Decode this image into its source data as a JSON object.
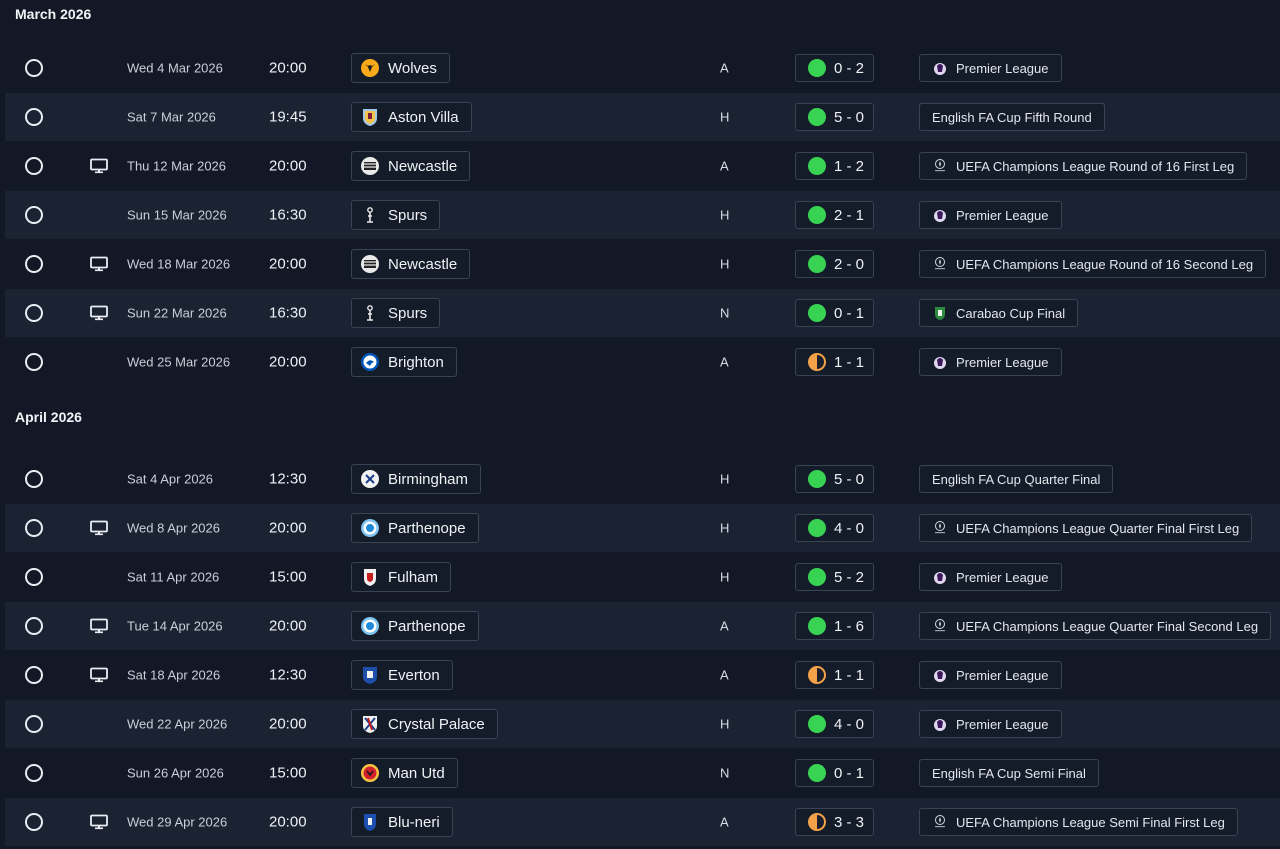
{
  "colors": {
    "background": "#121826",
    "row_alt": "#1b2232",
    "win": "#39d353",
    "draw": "#f4a24a",
    "border": "#3a4356"
  },
  "months": [
    {
      "title": "March 2026",
      "matches": [
        {
          "date": "Wed 4 Mar 2026",
          "time": "20:00",
          "opponent": "Wolves",
          "crest": "wolves-crest-icon",
          "venue": "A",
          "result": "0 - 2",
          "outcome": "win",
          "competition": "Premier League",
          "comp_icon": "premier-league-icon",
          "tv": false
        },
        {
          "date": "Sat 7 Mar 2026",
          "time": "19:45",
          "opponent": "Aston Villa",
          "crest": "aston-villa-crest-icon",
          "venue": "H",
          "result": "5 - 0",
          "outcome": "win",
          "competition": "English FA Cup Fifth Round",
          "comp_icon": "",
          "tv": false
        },
        {
          "date": "Thu 12 Mar 2026",
          "time": "20:00",
          "opponent": "Newcastle",
          "crest": "newcastle-crest-icon",
          "venue": "A",
          "result": "1 - 2",
          "outcome": "win",
          "competition": "UEFA Champions League Round of 16  First Leg",
          "comp_icon": "champions-league-icon",
          "tv": true
        },
        {
          "date": "Sun 15 Mar 2026",
          "time": "16:30",
          "opponent": "Spurs",
          "crest": "spurs-crest-icon",
          "venue": "H",
          "result": "2 - 1",
          "outcome": "win",
          "competition": "Premier League",
          "comp_icon": "premier-league-icon",
          "tv": false
        },
        {
          "date": "Wed 18 Mar 2026",
          "time": "20:00",
          "opponent": "Newcastle",
          "crest": "newcastle-crest-icon",
          "venue": "H",
          "result": "2 - 0",
          "outcome": "win",
          "competition": "UEFA Champions League Round of 16  Second Leg",
          "comp_icon": "champions-league-icon",
          "tv": true
        },
        {
          "date": "Sun 22 Mar 2026",
          "time": "16:30",
          "opponent": "Spurs",
          "crest": "spurs-crest-icon",
          "venue": "N",
          "result": "0 - 1",
          "outcome": "win",
          "competition": "Carabao Cup Final",
          "comp_icon": "carabao-cup-icon",
          "tv": true
        },
        {
          "date": "Wed 25 Mar 2026",
          "time": "20:00",
          "opponent": "Brighton",
          "crest": "brighton-crest-icon",
          "venue": "A",
          "result": "1 - 1",
          "outcome": "draw",
          "competition": "Premier League",
          "comp_icon": "premier-league-icon",
          "tv": false
        }
      ]
    },
    {
      "title": "April 2026",
      "matches": [
        {
          "date": "Sat 4 Apr 2026",
          "time": "12:30",
          "opponent": "Birmingham",
          "crest": "birmingham-crest-icon",
          "venue": "H",
          "result": "5 - 0",
          "outcome": "win",
          "competition": "English FA Cup Quarter Final",
          "comp_icon": "",
          "tv": false
        },
        {
          "date": "Wed 8 Apr 2026",
          "time": "20:00",
          "opponent": "Parthenope",
          "crest": "parthenope-crest-icon",
          "venue": "H",
          "result": "4 - 0",
          "outcome": "win",
          "competition": "UEFA Champions League Quarter Final First Leg",
          "comp_icon": "champions-league-icon",
          "tv": true
        },
        {
          "date": "Sat 11 Apr 2026",
          "time": "15:00",
          "opponent": "Fulham",
          "crest": "fulham-crest-icon",
          "venue": "H",
          "result": "5 - 2",
          "outcome": "win",
          "competition": "Premier League",
          "comp_icon": "premier-league-icon",
          "tv": false
        },
        {
          "date": "Tue 14 Apr 2026",
          "time": "20:00",
          "opponent": "Parthenope",
          "crest": "parthenope-crest-icon",
          "venue": "A",
          "result": "1 - 6",
          "outcome": "win",
          "competition": "UEFA Champions League Quarter Final Second Leg",
          "comp_icon": "champions-league-icon",
          "tv": true
        },
        {
          "date": "Sat 18 Apr 2026",
          "time": "12:30",
          "opponent": "Everton",
          "crest": "everton-crest-icon",
          "venue": "A",
          "result": "1 - 1",
          "outcome": "draw",
          "competition": "Premier League",
          "comp_icon": "premier-league-icon",
          "tv": true
        },
        {
          "date": "Wed 22 Apr 2026",
          "time": "20:00",
          "opponent": "Crystal Palace",
          "crest": "crystal-palace-crest-icon",
          "venue": "H",
          "result": "4 - 0",
          "outcome": "win",
          "competition": "Premier League",
          "comp_icon": "premier-league-icon",
          "tv": false
        },
        {
          "date": "Sun 26 Apr 2026",
          "time": "15:00",
          "opponent": "Man Utd",
          "crest": "man-utd-crest-icon",
          "venue": "N",
          "result": "0 - 1",
          "outcome": "win",
          "competition": "English FA Cup Semi Final",
          "comp_icon": "",
          "tv": false
        },
        {
          "date": "Wed 29 Apr 2026",
          "time": "20:00",
          "opponent": "Blu-neri",
          "crest": "blu-neri-crest-icon",
          "venue": "A",
          "result": "3 - 3",
          "outcome": "draw",
          "competition": "UEFA Champions League Semi Final First Leg",
          "comp_icon": "champions-league-icon",
          "tv": true
        }
      ]
    }
  ]
}
